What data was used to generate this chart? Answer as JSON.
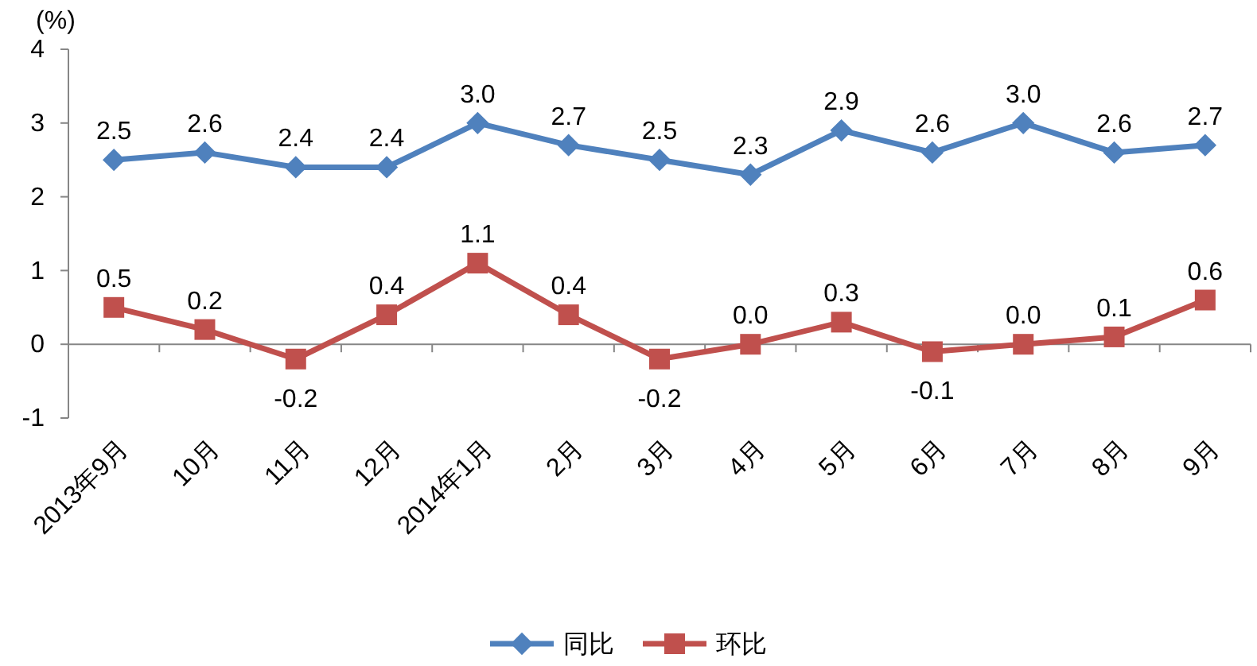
{
  "chart_data": {
    "type": "line",
    "ylabel": "(%)",
    "categories": [
      "2013年9月",
      "10月",
      "11月",
      "12月",
      "2014年1月",
      "2月",
      "3月",
      "4月",
      "5月",
      "6月",
      "7月",
      "8月",
      "9月"
    ],
    "series": [
      {
        "name": "同比",
        "color": "#4f81bd",
        "marker": "diamond",
        "values": [
          2.5,
          2.6,
          2.4,
          2.4,
          3.0,
          2.7,
          2.5,
          2.3,
          2.9,
          2.6,
          3.0,
          2.6,
          2.7
        ],
        "value_labels": [
          "2.5",
          "2.6",
          "2.4",
          "2.4",
          "3.0",
          "2.7",
          "2.5",
          "2.3",
          "2.9",
          "2.6",
          "3.0",
          "2.6",
          "2.7"
        ]
      },
      {
        "name": "环比",
        "color": "#c0504d",
        "marker": "square",
        "values": [
          0.5,
          0.2,
          -0.2,
          0.4,
          1.1,
          0.4,
          -0.2,
          0.0,
          0.3,
          -0.1,
          0.0,
          0.1,
          0.6
        ],
        "value_labels": [
          "0.5",
          "0.2",
          "-0.2",
          "0.4",
          "1.1",
          "0.4",
          "-0.2",
          "0.0",
          "0.3",
          "-0.1",
          "0.0",
          "0.1",
          "0.6"
        ]
      }
    ],
    "ylim": [
      -1,
      4
    ],
    "yticks": [
      -1,
      0,
      1,
      2,
      3,
      4
    ],
    "legend": "bottom",
    "line_style": "solid"
  }
}
